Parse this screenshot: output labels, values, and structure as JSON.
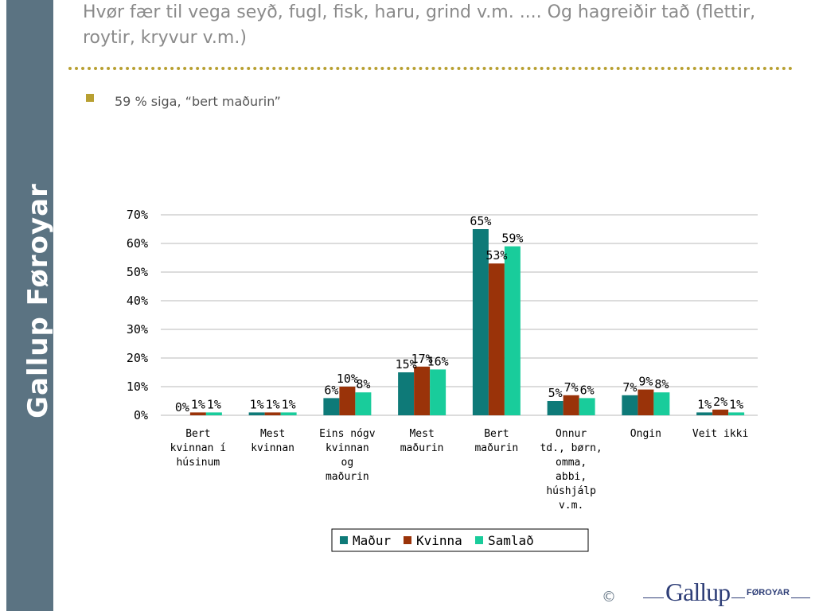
{
  "sidebar": {
    "brand": "Gallup Føroyar"
  },
  "slide": {
    "title": "Hvør fær til vega seyð, fugl, fisk, haru, grind v.m. .... Og hagreiðir tað (flettir, roytir, kryvur v.m.)",
    "bullet": "59 % siga, “bert maðurin”"
  },
  "footer": {
    "copyright": "©",
    "logo_main": "Gallup",
    "logo_sub": "FØROYAR"
  },
  "chart_data": {
    "type": "bar",
    "categories": [
      [
        "Bert",
        "kvinnan í",
        "húsinum"
      ],
      [
        "Mest",
        "kvinnan"
      ],
      [
        "Eins nógv",
        "kvinnan",
        "og",
        "maðurin"
      ],
      [
        "Mest",
        "maðurin"
      ],
      [
        "Bert",
        "maðurin"
      ],
      [
        "Onnur",
        "td., børn,",
        "omma,",
        "abbi,",
        "húshjálp",
        "v.m."
      ],
      [
        "Ongin"
      ],
      [
        "Veit ikki"
      ]
    ],
    "series": [
      {
        "name": "Maður",
        "color": "#0e7a78",
        "values": [
          0,
          1,
          6,
          15,
          65,
          5,
          7,
          1
        ]
      },
      {
        "name": "Kvinna",
        "color": "#9a3309",
        "values": [
          1,
          1,
          10,
          17,
          53,
          7,
          9,
          2
        ]
      },
      {
        "name": "Samlað",
        "color": "#19cc9b",
        "values": [
          1,
          1,
          8,
          16,
          59,
          6,
          8,
          1
        ]
      }
    ],
    "value_suffix": "%",
    "ylim": [
      0,
      70
    ],
    "ytick_step": 10,
    "ytick_labels": [
      "0%",
      "10%",
      "20%",
      "30%",
      "40%",
      "50%",
      "60%",
      "70%"
    ],
    "grid": true,
    "legend_position": "bottom"
  }
}
